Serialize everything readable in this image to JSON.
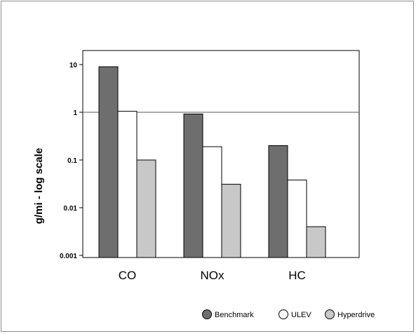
{
  "chart_data": {
    "type": "bar",
    "title": "",
    "ylabel": "g/mi - log scale",
    "xlabel": "",
    "yscale": "log",
    "ylim": [
      0.001,
      20
    ],
    "yticks": [
      {
        "value": 0.001,
        "label": "0.001"
      },
      {
        "value": 0.01,
        "label": "0.01"
      },
      {
        "value": 0.1,
        "label": "0.1"
      },
      {
        "value": 1,
        "label": "1"
      },
      {
        "value": 10,
        "label": "10"
      }
    ],
    "categories": [
      "CO",
      "NOx",
      "HC"
    ],
    "series": [
      {
        "name": "Benchmark",
        "color": "#6e6e6e",
        "values": [
          9.0,
          0.92,
          0.2
        ]
      },
      {
        "name": "ULEV",
        "color": "#ffffff",
        "values": [
          1.05,
          0.19,
          0.038
        ]
      },
      {
        "name": "Hyperdrive",
        "color": "#c8c8c8",
        "values": [
          0.1,
          0.031,
          0.004
        ]
      }
    ],
    "reference_line": 1,
    "grid": false,
    "legend_position": "bottom-right"
  }
}
